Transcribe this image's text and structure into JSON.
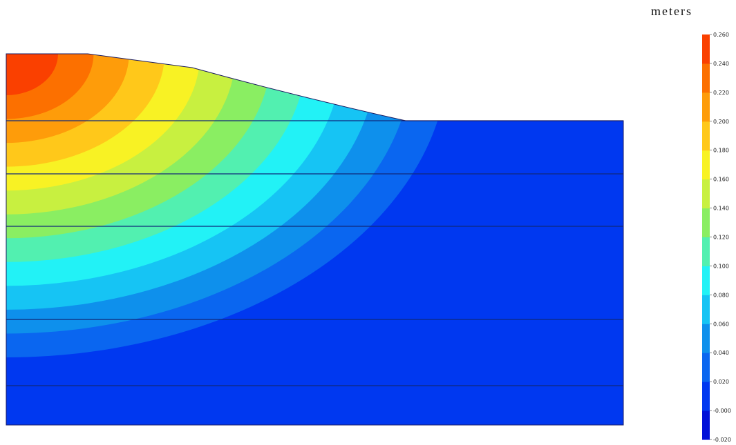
{
  "chart_data": {
    "type": "heatmap",
    "colorbar": {
      "unit_label": "meters",
      "ticks": [
        "0.260",
        "0.240",
        "0.220",
        "0.200",
        "0.180",
        "0.160",
        "0.140",
        "0.120",
        "0.100",
        "0.080",
        "0.060",
        "0.040",
        "0.020",
        "-0.000",
        "-0.020"
      ],
      "range": [
        -0.02,
        0.26
      ],
      "interval": 0.02,
      "colors": [
        "#0010d8",
        "#0038f0",
        "#0a66f0",
        "#0e90ec",
        "#16c4f4",
        "#22f2f6",
        "#52f0b0",
        "#8aee62",
        "#c8f040",
        "#f8f224",
        "#ffc81a",
        "#fe9c0a",
        "#fc7000",
        "#fa4000"
      ]
    },
    "layer_boundaries": 5,
    "contour_bands": 13,
    "colors": {
      "background": "#ffffff",
      "layer_line": "#10287a",
      "outline": "#1a1a60"
    }
  }
}
